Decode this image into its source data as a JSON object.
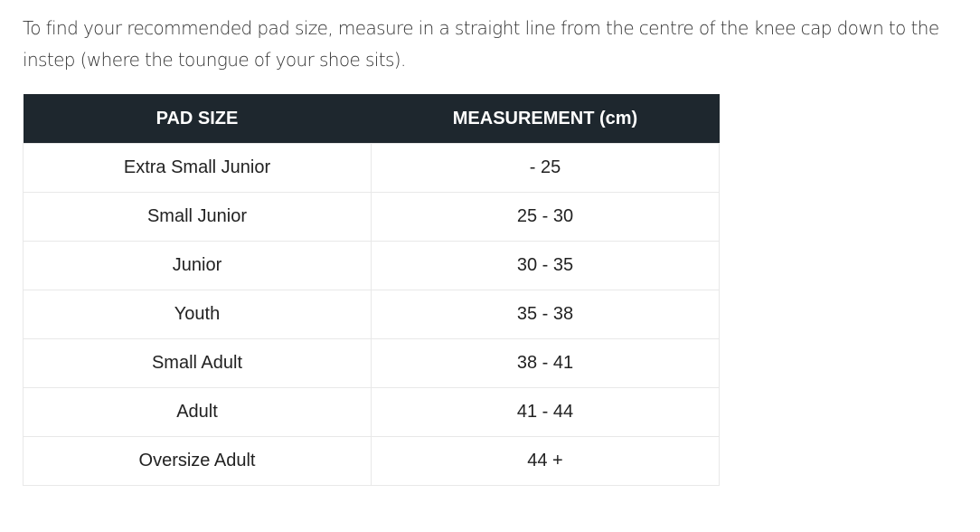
{
  "intro": "To find your recommended pad size, measure in a straight line from the centre of the knee cap down to the instep (where the toungue of your shoe sits).",
  "table": {
    "headers": [
      "PAD SIZE",
      "MEASUREMENT (cm)"
    ],
    "header_color": "#1e272e",
    "rows": [
      [
        "Extra Small Junior",
        "- 25"
      ],
      [
        "Small Junior",
        "25 - 30"
      ],
      [
        "Junior",
        "30 - 35"
      ],
      [
        "Youth",
        "35 - 38"
      ],
      [
        "Small Adult",
        "38 - 41"
      ],
      [
        "Adult",
        "41 - 44"
      ],
      [
        "Oversize Adult",
        "44 +"
      ]
    ]
  }
}
